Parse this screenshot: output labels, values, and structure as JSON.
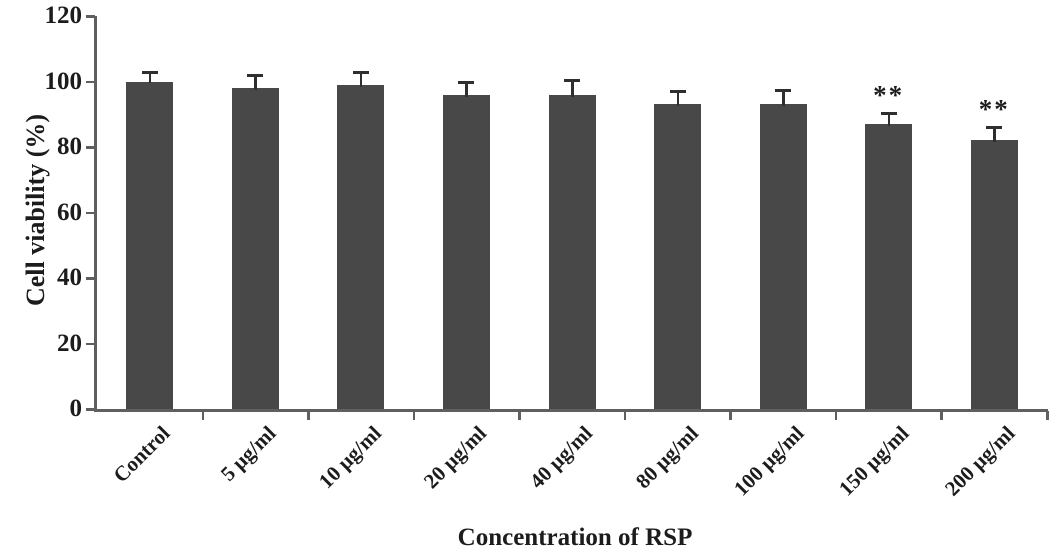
{
  "chart_data": {
    "type": "bar",
    "title": "",
    "xlabel": "Concentration of RSP",
    "ylabel": "Cell viability (%)",
    "categories": [
      "Control",
      "5 µg/ml",
      "10 µg/ml",
      "20 µg/ml",
      "40 µg/ml",
      "80 µg/ml",
      "100 µg/ml",
      "150 µg/ml",
      "200 µg/ml"
    ],
    "values": [
      100,
      98,
      99,
      96,
      96,
      93,
      93,
      87,
      82
    ],
    "errors": [
      3,
      4,
      4,
      4,
      4.5,
      4,
      4.5,
      3.5,
      4
    ],
    "significance": [
      "",
      "",
      "",
      "",
      "",
      "",
      "",
      "**",
      "**"
    ],
    "ylim": [
      0,
      120
    ],
    "yticks": [
      0,
      20,
      40,
      60,
      80,
      100,
      120
    ],
    "grid": false,
    "legend_position": "none",
    "bar_color": "#484848",
    "error_color": "#2f2f2f",
    "axis_color": "#5f5f5f",
    "text_color": "#1c1c1c"
  }
}
